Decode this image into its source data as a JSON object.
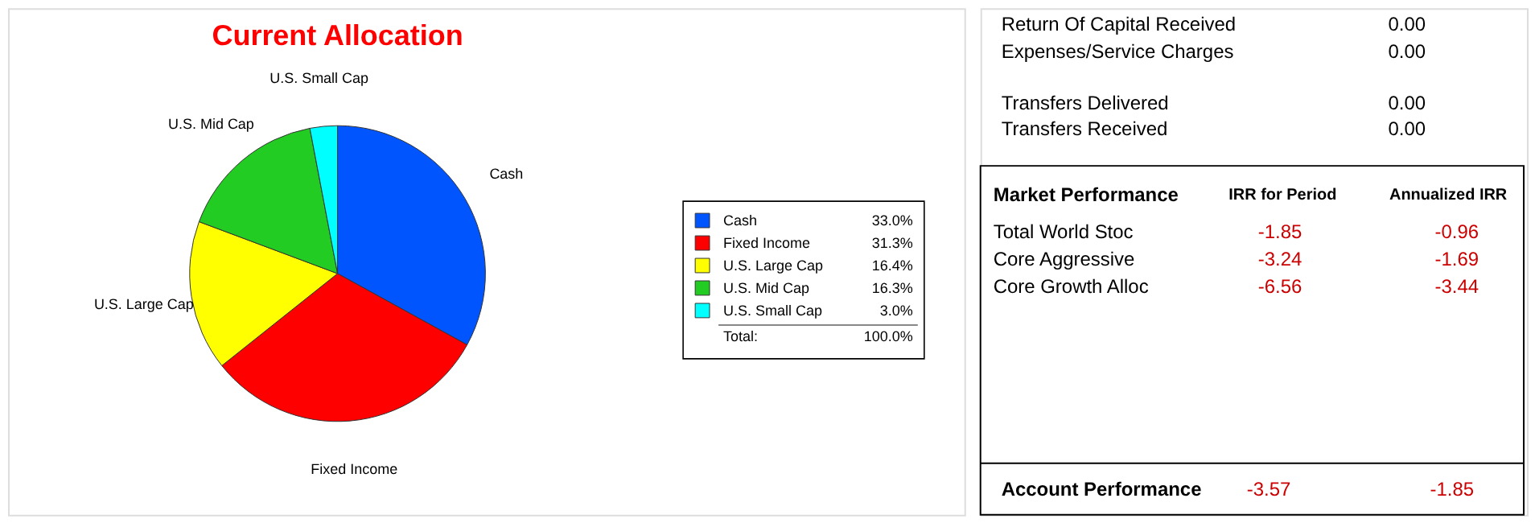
{
  "chart_data": [
    {
      "type": "pie",
      "title": "Current Allocation",
      "categories": [
        "Cash",
        "Fixed Income",
        "U.S. Large Cap",
        "U.S. Mid Cap",
        "U.S. Small Cap"
      ],
      "values": [
        33.0,
        31.3,
        16.4,
        16.3,
        3.0
      ],
      "colors": [
        "#0055ff",
        "#ff0000",
        "#ffff00",
        "#22cc22",
        "#00ffff"
      ],
      "value_labels": [
        "33.0%",
        "31.3%",
        "16.4%",
        "16.3%",
        "3.0%"
      ],
      "legend": "right",
      "annotations": [
        "Total:",
        "100.0%"
      ]
    },
    {
      "type": "other",
      "annotations": [
        "Return Of Capital Received",
        "0.00",
        "Expenses/Service Charges",
        "0.00",
        "Transfers Delivered",
        "0.00",
        "Transfers Received",
        "0.00",
        "Market Performance",
        "IRR for Period",
        "Annualized IRR",
        "Total World Stoc",
        "-1.85",
        "-0.96",
        "Core Aggressive",
        "-3.24",
        "-1.69",
        "Core Growth Alloc",
        "-6.56",
        "-3.44",
        "Account Performance",
        "-3.57",
        "-1.85"
      ]
    }
  ]
}
